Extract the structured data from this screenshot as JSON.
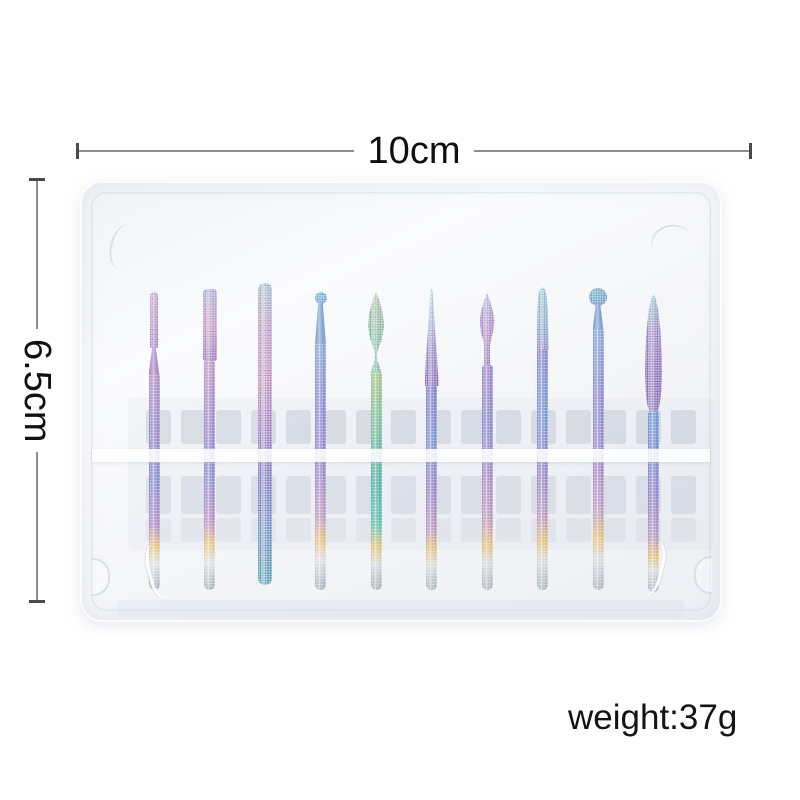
{
  "annotations": {
    "width": {
      "label": "10cm"
    },
    "height": {
      "label": "6.5cm"
    },
    "weight": {
      "label": "weight:37g"
    }
  },
  "case": {
    "description": "translucent white plastic storage box",
    "base_color": "#f5f6f9",
    "retainer_bar_color": "#ffffff",
    "slot_rows": 3,
    "slots_per_row": 16,
    "slot_color": "#a8b0c0"
  },
  "bit_count": 10,
  "bits": [
    {
      "name": "needle-cylinder-bit",
      "tip": "needle",
      "tip_colors": [
        "#c9aad0",
        "#ab8fc8"
      ],
      "shaft_colors": [
        "#b292c6",
        "#9a8bcb",
        "#8a8ed2",
        "#b08fc8",
        "#e6c584",
        "#dfe3e7",
        "#a9b4bf"
      ]
    },
    {
      "name": "barrel-bit",
      "tip": "barrel",
      "tip_colors": [
        "#a9b4da",
        "#cc9fc6",
        "#a184c4"
      ],
      "shaft_colors": [
        "#c09ac4",
        "#a28ccb",
        "#8d90d2",
        "#bb93c4",
        "#e6c584",
        "#dde1e5",
        "#a7b2bd"
      ]
    },
    {
      "name": "round-top-stick-bit",
      "tip": "stick",
      "tip_colors": [
        "#a9c2cc",
        "#c2a4ca"
      ],
      "shaft_colors": [
        "#a9c2cc",
        "#c2a4ca",
        "#c79ec2",
        "#a98cc8",
        "#8d86c8",
        "#7d9cc8",
        "#63a8b8"
      ]
    },
    {
      "name": "small-ball-bit",
      "tip": "ball-small",
      "tip_colors": [
        "#8fc2d6",
        "#7fa6d0"
      ],
      "shaft_colors": [
        "#8aa6d2",
        "#8f8cd0",
        "#9d8aca",
        "#bd9cc2",
        "#e4c384",
        "#dce0e4",
        "#a6b1bc"
      ]
    },
    {
      "name": "flame-waist-bit",
      "tip": "flame",
      "tip_colors": [
        "#b0b9a8",
        "#8fc0a9",
        "#79bcab"
      ],
      "shaft_colors": [
        "#a8c48c",
        "#79bb9e",
        "#58b1a5",
        "#65bfb2",
        "#dfc27e",
        "#d5dbdd",
        "#a4b0b8"
      ]
    },
    {
      "name": "slender-cone-bit",
      "tip": "cone",
      "tip_colors": [
        "#a6ced4",
        "#9fb0d6",
        "#9b86c6",
        "#8d76bc"
      ],
      "shaft_colors": [
        "#8a82c6",
        "#7f95cf",
        "#9a89c6",
        "#b79bc0",
        "#e2c07e",
        "#d8dce0",
        "#a8b3be"
      ]
    },
    {
      "name": "bud-bit",
      "tip": "bud",
      "tip_colors": [
        "#9fb4cc",
        "#b38fc9",
        "#8f6cb4"
      ],
      "shaft_colors": [
        "#a48bc8",
        "#8f8ccd",
        "#a88fc4",
        "#c29fbb",
        "#e0c07f",
        "#d6dade",
        "#a9b4bf"
      ]
    },
    {
      "name": "tapered-round-bit",
      "tip": "round-cone",
      "tip_colors": [
        "#8ec5ce",
        "#8fb4d4",
        "#9a90c9"
      ],
      "shaft_colors": [
        "#8a8bcb",
        "#7e9bd2",
        "#978bc9",
        "#bb9cbe",
        "#e0c17e",
        "#d7dbdf",
        "#a8b3be"
      ]
    },
    {
      "name": "ball-bit",
      "tip": "ball",
      "tip_colors": [
        "#85c4cf",
        "#7f9cce"
      ],
      "shaft_colors": [
        "#86a8d6",
        "#8f8ecf",
        "#a18cc9",
        "#bf9fc0",
        "#e2c180",
        "#d8dce0",
        "#aab5c0"
      ]
    },
    {
      "name": "large-flame-bit",
      "tip": "bullet",
      "tip_colors": [
        "#8fc2c9",
        "#a08cc8",
        "#9478bc",
        "#8a70b4"
      ],
      "shaft_colors": [
        "#6f9bd2",
        "#7f8ecd",
        "#9a8ac8",
        "#b79cc2",
        "#dfc180",
        "#d6dade",
        "#a9b4bf"
      ]
    }
  ]
}
